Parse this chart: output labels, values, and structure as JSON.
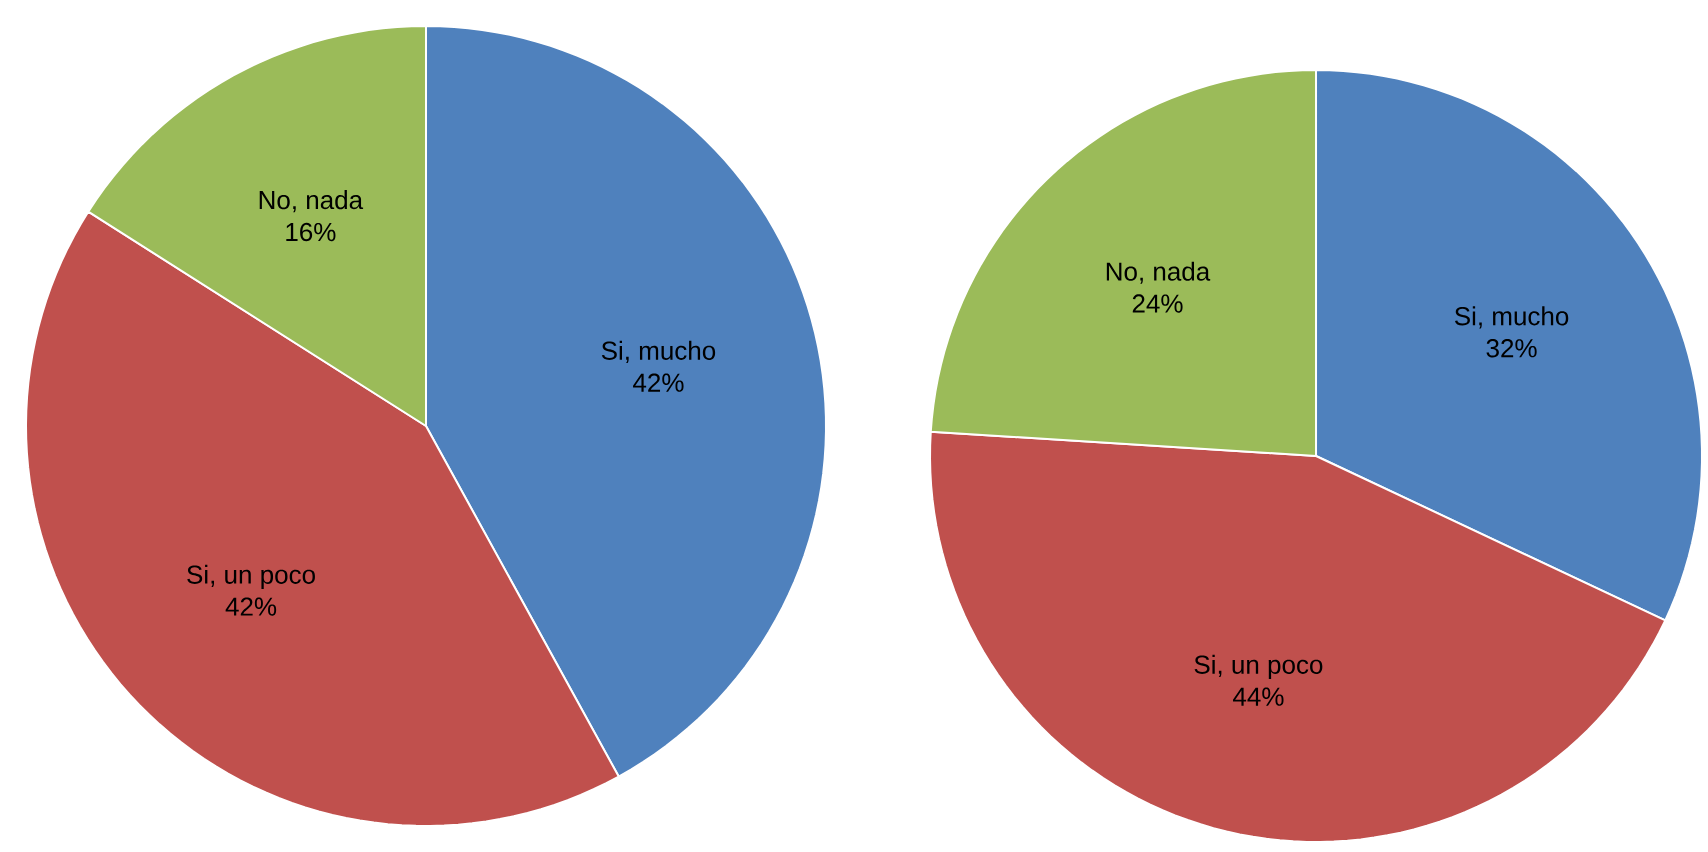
{
  "chart_data": [
    {
      "type": "pie",
      "categories": [
        "Si, mucho",
        "Si, un poco",
        "No, nada"
      ],
      "values": [
        42,
        42,
        16
      ],
      "value_labels": [
        "42%",
        "42%",
        "16%"
      ],
      "colors": [
        "#4f81bd",
        "#c0504d",
        "#9bbb59"
      ]
    },
    {
      "type": "pie",
      "categories": [
        "Si, mucho",
        "Si, un poco",
        "No, nada"
      ],
      "values": [
        32,
        44,
        24
      ],
      "value_labels": [
        "32%",
        "44%",
        "24%"
      ],
      "colors": [
        "#4f81bd",
        "#c0504d",
        "#9bbb59"
      ]
    }
  ]
}
